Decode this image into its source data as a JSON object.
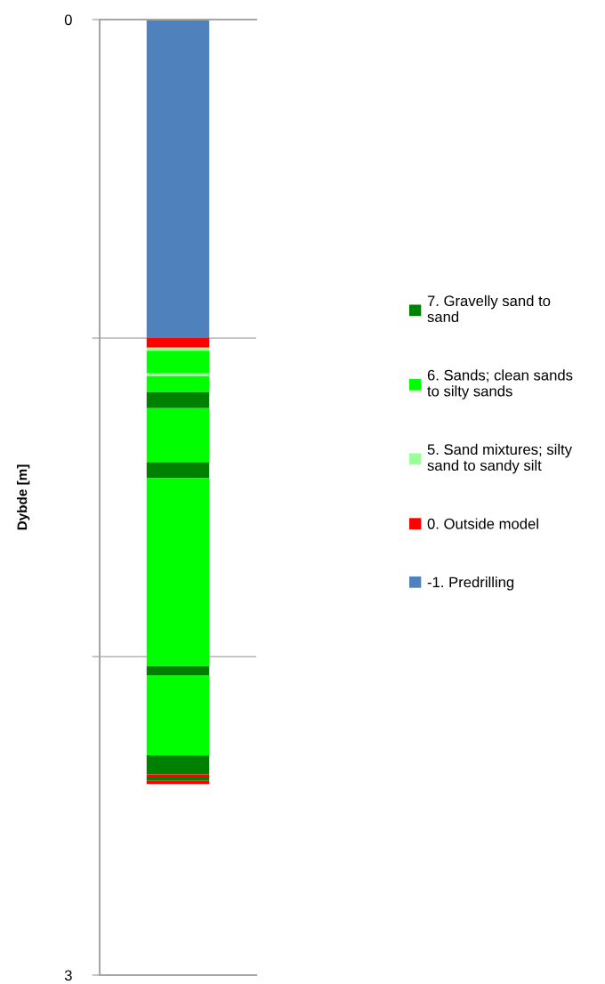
{
  "chart_data": {
    "type": "bar",
    "stacked": true,
    "categories": [
      null
    ],
    "ylabel": "Dybde [m]",
    "ylim": [
      3,
      0
    ],
    "yticks": [
      0,
      {
        "value": 1,
        "label": null
      },
      {
        "value": 2,
        "label": null
      },
      3
    ],
    "grid": "y",
    "legend": "right",
    "series": [
      {
        "name": "-1. Predrilling",
        "color": "#4f81bd",
        "values": [
          1.0
        ]
      },
      {
        "name": "0. Outside model",
        "color": "#ff0000",
        "values": [
          0.03
        ]
      },
      {
        "name": "5. Sand mixtures; silty sand to sandy silt",
        "color": "#99ff99",
        "values": [
          0.01
        ]
      },
      {
        "name": "6. Sands; clean sands to silty sands",
        "color": "#00ff00",
        "values": [
          0.07
        ]
      },
      {
        "color": "#99ff99",
        "values": [
          0.01
        ]
      },
      {
        "color": "#00ff00",
        "values": [
          0.05
        ]
      },
      {
        "name": "7. Gravelly sand to sand",
        "color": "#008000",
        "values": [
          0.05
        ]
      },
      {
        "color": "#00ff00",
        "values": [
          0.17
        ]
      },
      {
        "color": "#008000",
        "values": [
          0.05
        ]
      },
      {
        "color": "#00ff00",
        "values": [
          0.59
        ]
      },
      {
        "color": "#008000",
        "values": [
          0.03
        ]
      },
      {
        "color": "#00ff00",
        "values": [
          0.25
        ]
      },
      {
        "color": "#008000",
        "values": [
          0.06
        ]
      },
      {
        "color": "#ff0000",
        "values": [
          0.01
        ]
      },
      {
        "color": "#008000",
        "values": [
          0.01
        ]
      },
      {
        "color": "#ff0000",
        "values": [
          0.01
        ]
      }
    ]
  }
}
